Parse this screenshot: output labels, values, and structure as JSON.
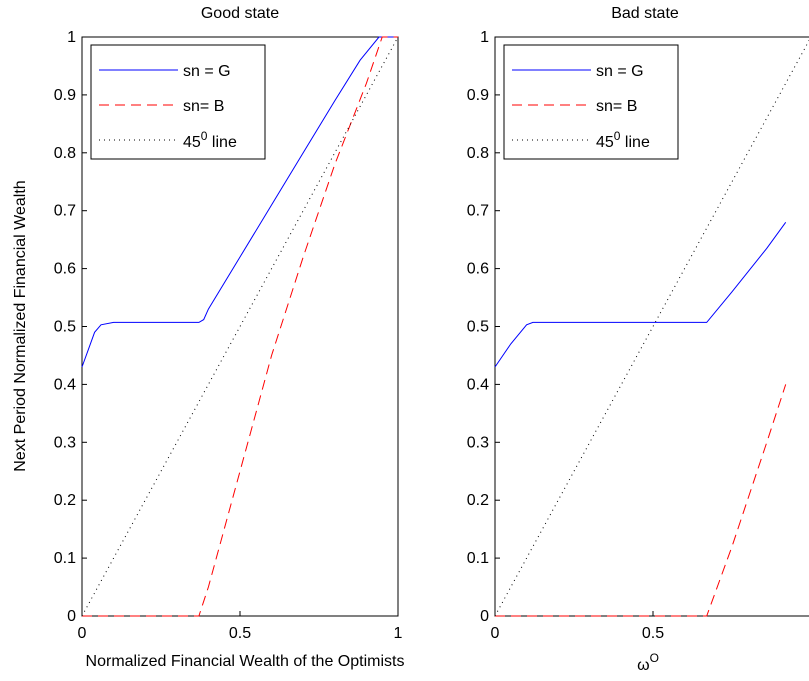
{
  "chart_data": [
    {
      "type": "line",
      "title": "Good state",
      "xlabel": "Normalized Financial Wealth of the Optimists",
      "ylabel": "Next Period Normalized Financial Wealth",
      "xlim": [
        0,
        1
      ],
      "ylim": [
        0,
        1
      ],
      "x_ticks": [
        "0",
        "0.5",
        "1"
      ],
      "y_ticks": [
        "0",
        "0.1",
        "0.2",
        "0.3",
        "0.4",
        "0.5",
        "0.6",
        "0.7",
        "0.8",
        "0.9",
        "1"
      ],
      "legend_position": "top-left",
      "series": [
        {
          "name": "sn = G",
          "color": "#0000ff",
          "style": "solid",
          "points": [
            [
              0,
              0.43
            ],
            [
              0.02,
              0.46
            ],
            [
              0.04,
              0.49
            ],
            [
              0.06,
              0.503
            ],
            [
              0.1,
              0.507
            ],
            [
              0.2,
              0.507
            ],
            [
              0.3,
              0.507
            ],
            [
              0.37,
              0.507
            ],
            [
              0.385,
              0.512
            ],
            [
              0.4,
              0.53
            ],
            [
              0.5,
              0.62
            ],
            [
              0.6,
              0.71
            ],
            [
              0.7,
              0.8
            ],
            [
              0.8,
              0.89
            ],
            [
              0.88,
              0.96
            ],
            [
              0.94,
              1.0
            ],
            [
              1.0,
              1.0
            ]
          ]
        },
        {
          "name": "sn= B",
          "color": "#ff0000",
          "style": "dashed",
          "points": [
            [
              0,
              0
            ],
            [
              0.37,
              0
            ],
            [
              0.4,
              0.05
            ],
            [
              0.5,
              0.25
            ],
            [
              0.6,
              0.45
            ],
            [
              0.7,
              0.62
            ],
            [
              0.8,
              0.78
            ],
            [
              0.9,
              0.92
            ],
            [
              0.95,
              1.0
            ],
            [
              1.0,
              1.0
            ]
          ]
        },
        {
          "name": "45 line",
          "color": "#000000",
          "style": "dotted",
          "points": [
            [
              0,
              0
            ],
            [
              1,
              1
            ]
          ]
        }
      ]
    },
    {
      "type": "line",
      "title": "Bad state",
      "xlabel": "ω",
      "xlabel_sup": "O",
      "ylabel": "",
      "xlim": [
        0,
        1
      ],
      "ylim": [
        0,
        1
      ],
      "x_ticks": [
        "0",
        "0.5"
      ],
      "y_ticks": [
        "0",
        "0.1",
        "0.2",
        "0.3",
        "0.4",
        "0.5",
        "0.6",
        "0.7",
        "0.8",
        "0.9",
        "1"
      ],
      "legend_position": "top-left",
      "series": [
        {
          "name": "sn = G",
          "color": "#0000ff",
          "style": "solid",
          "points": [
            [
              0,
              0.43
            ],
            [
              0.05,
              0.47
            ],
            [
              0.1,
              0.503
            ],
            [
              0.12,
              0.507
            ],
            [
              0.3,
              0.507
            ],
            [
              0.5,
              0.507
            ],
            [
              0.67,
              0.507
            ],
            [
              0.75,
              0.56
            ],
            [
              0.86,
              0.635
            ],
            [
              0.92,
              0.68
            ]
          ]
        },
        {
          "name": "sn= B",
          "color": "#ff0000",
          "style": "dashed",
          "points": [
            [
              0,
              0
            ],
            [
              0.67,
              0
            ],
            [
              0.75,
              0.12
            ],
            [
              0.86,
              0.3
            ],
            [
              0.92,
              0.4
            ]
          ]
        },
        {
          "name": "45 line",
          "color": "#000000",
          "style": "dotted",
          "points": [
            [
              0,
              0
            ],
            [
              0.92,
              0.92
            ],
            [
              1,
              1
            ]
          ]
        }
      ]
    }
  ],
  "legend_superscript": "0",
  "legend_suffix": " line"
}
